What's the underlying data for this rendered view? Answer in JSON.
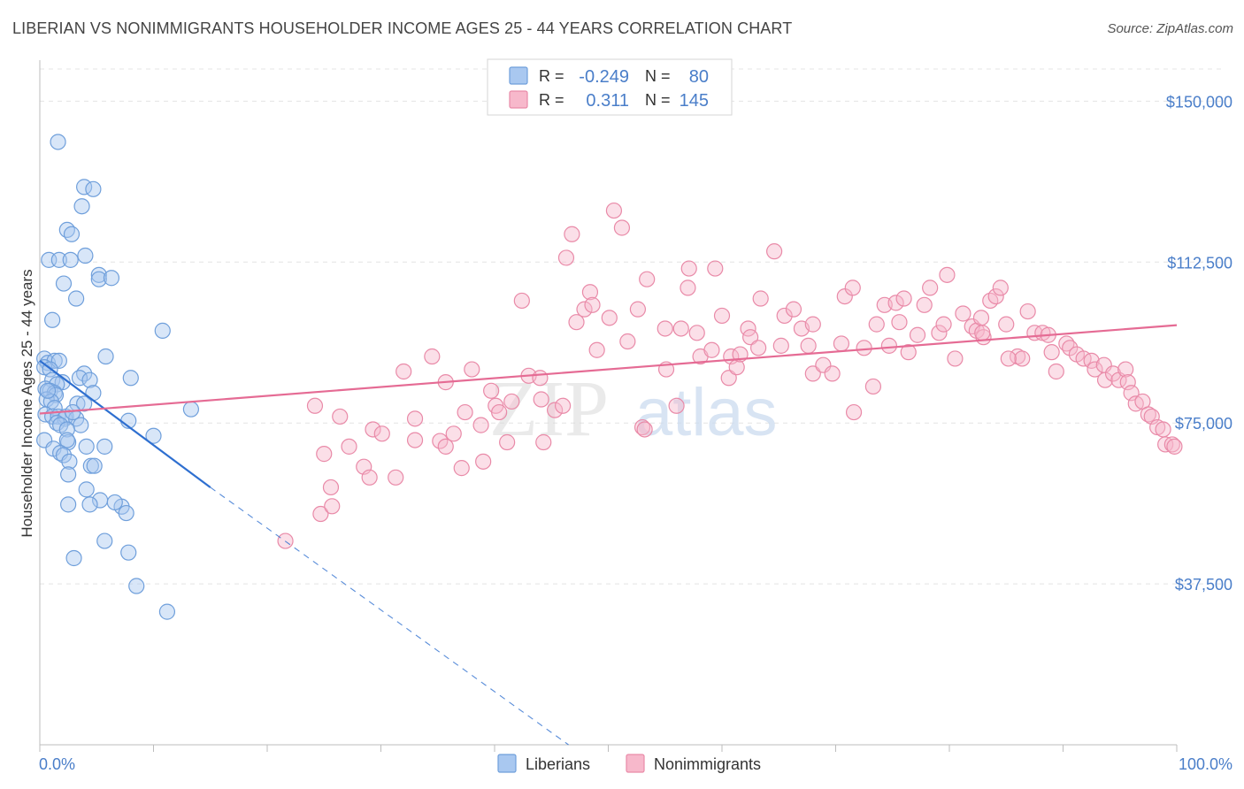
{
  "header": {
    "title": "LIBERIAN VS NONIMMIGRANTS HOUSEHOLDER INCOME AGES 25 - 44 YEARS CORRELATION CHART",
    "source": "Source: ZipAtlas.com"
  },
  "watermark": {
    "zip": "ZIP",
    "atlas": "atlas"
  },
  "legend_box": {
    "rows": [
      {
        "r_label": "R =",
        "r_value": "-0.249",
        "n_label": "N =",
        "n_value": "80",
        "color": "#a9c8f0",
        "stroke": "#6f9fdb"
      },
      {
        "r_label": "R =",
        "r_value": "0.311",
        "n_label": "N =",
        "n_value": "145",
        "color": "#f7b8cb",
        "stroke": "#e98aa8"
      }
    ]
  },
  "bottom_legend": [
    {
      "label": "Liberians",
      "color": "#a9c8f0",
      "stroke": "#6f9fdb"
    },
    {
      "label": "Nonimmigrants",
      "color": "#f7b8cb",
      "stroke": "#e98aa8"
    }
  ],
  "chart_data": {
    "type": "scatter",
    "title": "LIBERIAN VS NONIMMIGRANTS HOUSEHOLDER INCOME AGES 25 - 44 YEARS CORRELATION CHART",
    "xlabel": "",
    "ylabel": "Householder Income Ages 25 - 44 years",
    "xlim": [
      0,
      100
    ],
    "ylim": [
      0,
      157500
    ],
    "x_tick_labels": [
      "0.0%",
      "100.0%"
    ],
    "y_ticks": [
      37500,
      75000,
      112500,
      150000
    ],
    "y_tick_labels": [
      "$37,500",
      "$75,000",
      "$112,500",
      "$150,000"
    ],
    "grid": true,
    "series": [
      {
        "name": "Liberians",
        "color": "#6f9fdb",
        "fill": "#a9c8f0",
        "line_color": "#2e6fd0",
        "trend": {
          "x0": 0,
          "y0": 89500,
          "x1": 15,
          "y1": 60000,
          "dash_to_x": 46.5,
          "dash_to_y": 0
        },
        "points": [
          [
            1.6,
            140500
          ],
          [
            3.9,
            130000
          ],
          [
            4.7,
            129500
          ],
          [
            3.7,
            125500
          ],
          [
            2.4,
            120000
          ],
          [
            2.8,
            119000
          ],
          [
            0.8,
            113000
          ],
          [
            1.7,
            113000
          ],
          [
            2.7,
            113000
          ],
          [
            4.0,
            114000
          ],
          [
            5.2,
            109500
          ],
          [
            5.2,
            108500
          ],
          [
            6.3,
            108800
          ],
          [
            2.1,
            107500
          ],
          [
            3.2,
            104000
          ],
          [
            1.1,
            99000
          ],
          [
            10.8,
            96500
          ],
          [
            0.4,
            90000
          ],
          [
            0.7,
            89000
          ],
          [
            1.3,
            89500
          ],
          [
            1.7,
            89500
          ],
          [
            5.8,
            90500
          ],
          [
            0.4,
            88000
          ],
          [
            0.9,
            87500
          ],
          [
            3.9,
            86500
          ],
          [
            8.0,
            85500
          ],
          [
            1.1,
            85000
          ],
          [
            2.0,
            84500
          ],
          [
            3.5,
            85500
          ],
          [
            4.4,
            85000
          ],
          [
            1.5,
            84000
          ],
          [
            0.5,
            83000
          ],
          [
            0.9,
            82500
          ],
          [
            1.3,
            82000
          ],
          [
            4.7,
            82000
          ],
          [
            1.4,
            81500
          ],
          [
            0.6,
            80500
          ],
          [
            1.0,
            80000
          ],
          [
            3.3,
            79500
          ],
          [
            3.9,
            79500
          ],
          [
            1.3,
            78500
          ],
          [
            13.3,
            78200
          ],
          [
            0.5,
            77000
          ],
          [
            1.1,
            76500
          ],
          [
            1.6,
            76500
          ],
          [
            2.2,
            76000
          ],
          [
            2.3,
            76500
          ],
          [
            3.2,
            76000
          ],
          [
            7.8,
            75500
          ],
          [
            1.5,
            75000
          ],
          [
            1.8,
            74500
          ],
          [
            3.6,
            74500
          ],
          [
            2.4,
            73500
          ],
          [
            10.0,
            72000
          ],
          [
            2.5,
            70500
          ],
          [
            2.4,
            71000
          ],
          [
            0.4,
            71000
          ],
          [
            5.7,
            69500
          ],
          [
            4.1,
            69500
          ],
          [
            1.2,
            69000
          ],
          [
            1.8,
            68000
          ],
          [
            2.1,
            67500
          ],
          [
            4.5,
            65000
          ],
          [
            4.8,
            65000
          ],
          [
            2.6,
            66000
          ],
          [
            2.5,
            63000
          ],
          [
            4.1,
            59500
          ],
          [
            5.3,
            57000
          ],
          [
            2.5,
            56000
          ],
          [
            4.4,
            56000
          ],
          [
            7.2,
            55500
          ],
          [
            7.6,
            54000
          ],
          [
            5.7,
            47500
          ],
          [
            7.8,
            44800
          ],
          [
            3.0,
            43500
          ],
          [
            8.5,
            37000
          ],
          [
            11.2,
            31000
          ],
          [
            0.7,
            82500
          ],
          [
            2.9,
            77500
          ],
          [
            6.6,
            56500
          ]
        ]
      },
      {
        "name": "Nonimmigrants",
        "color": "#e98aa8",
        "fill": "#f7b8cb",
        "line_color": "#e56b94",
        "trend": {
          "x0": 0,
          "y0": 77200,
          "x1": 100,
          "y1": 97800
        },
        "points": [
          [
            21.6,
            47500
          ],
          [
            24.7,
            53800
          ],
          [
            25.7,
            55600
          ],
          [
            25.6,
            60000
          ],
          [
            25.0,
            67800
          ],
          [
            26.4,
            76500
          ],
          [
            24.2,
            79000
          ],
          [
            27.2,
            69500
          ],
          [
            28.5,
            64800
          ],
          [
            29.0,
            62300
          ],
          [
            29.3,
            73500
          ],
          [
            30.1,
            72500
          ],
          [
            31.3,
            62300
          ],
          [
            32.0,
            87000
          ],
          [
            33.0,
            76000
          ],
          [
            33.0,
            71000
          ],
          [
            34.5,
            90500
          ],
          [
            35.2,
            70800
          ],
          [
            35.7,
            69500
          ],
          [
            35.7,
            84500
          ],
          [
            36.4,
            72500
          ],
          [
            37.1,
            64500
          ],
          [
            37.4,
            77500
          ],
          [
            38.0,
            87500
          ],
          [
            38.8,
            74500
          ],
          [
            39.0,
            66000
          ],
          [
            39.7,
            82500
          ],
          [
            40.1,
            79000
          ],
          [
            40.4,
            77500
          ],
          [
            41.1,
            70500
          ],
          [
            41.5,
            80000
          ],
          [
            42.4,
            103500
          ],
          [
            43.0,
            86000
          ],
          [
            44.0,
            85500
          ],
          [
            44.1,
            80500
          ],
          [
            44.3,
            70500
          ],
          [
            45.3,
            78000
          ],
          [
            46.0,
            79000
          ],
          [
            46.3,
            113500
          ],
          [
            46.8,
            119000
          ],
          [
            47.2,
            98500
          ],
          [
            47.9,
            101500
          ],
          [
            48.4,
            105500
          ],
          [
            48.6,
            102500
          ],
          [
            49.0,
            92000
          ],
          [
            50.1,
            99500
          ],
          [
            50.5,
            124500
          ],
          [
            51.2,
            120500
          ],
          [
            51.7,
            94000
          ],
          [
            52.6,
            101500
          ],
          [
            53.0,
            74000
          ],
          [
            53.2,
            73500
          ],
          [
            53.4,
            108500
          ],
          [
            55.0,
            97000
          ],
          [
            55.1,
            87500
          ],
          [
            56.0,
            79000
          ],
          [
            56.4,
            97000
          ],
          [
            57.0,
            106500
          ],
          [
            57.1,
            111000
          ],
          [
            57.8,
            96000
          ],
          [
            58.1,
            90500
          ],
          [
            59.1,
            92000
          ],
          [
            59.4,
            111000
          ],
          [
            60.0,
            100000
          ],
          [
            60.6,
            85500
          ],
          [
            60.8,
            90500
          ],
          [
            61.3,
            88000
          ],
          [
            61.6,
            91000
          ],
          [
            62.3,
            97000
          ],
          [
            62.5,
            95000
          ],
          [
            63.4,
            104000
          ],
          [
            63.2,
            92500
          ],
          [
            64.6,
            115000
          ],
          [
            65.2,
            93000
          ],
          [
            65.5,
            100000
          ],
          [
            66.3,
            101500
          ],
          [
            67.0,
            97000
          ],
          [
            67.6,
            93000
          ],
          [
            68.0,
            98000
          ],
          [
            68.0,
            86500
          ],
          [
            68.9,
            88500
          ],
          [
            69.7,
            86500
          ],
          [
            70.5,
            93500
          ],
          [
            70.8,
            104500
          ],
          [
            71.5,
            106500
          ],
          [
            71.6,
            77500
          ],
          [
            72.5,
            92500
          ],
          [
            73.3,
            83500
          ],
          [
            73.6,
            98000
          ],
          [
            74.3,
            102500
          ],
          [
            74.7,
            93000
          ],
          [
            75.3,
            103000
          ],
          [
            75.6,
            98500
          ],
          [
            76.0,
            104000
          ],
          [
            76.4,
            91500
          ],
          [
            77.2,
            95500
          ],
          [
            77.8,
            102500
          ],
          [
            78.3,
            106500
          ],
          [
            79.1,
            96000
          ],
          [
            79.5,
            98000
          ],
          [
            79.8,
            109500
          ],
          [
            80.5,
            90000
          ],
          [
            81.2,
            100500
          ],
          [
            82.0,
            97500
          ],
          [
            82.4,
            96500
          ],
          [
            82.8,
            99500
          ],
          [
            83.0,
            95000
          ],
          [
            83.6,
            103500
          ],
          [
            84.1,
            104500
          ],
          [
            84.5,
            106500
          ],
          [
            85.0,
            98000
          ],
          [
            86.0,
            90500
          ],
          [
            86.4,
            90000
          ],
          [
            86.9,
            101000
          ],
          [
            87.5,
            96000
          ],
          [
            88.2,
            96000
          ],
          [
            88.7,
            95500
          ],
          [
            89.0,
            91500
          ],
          [
            89.4,
            87000
          ],
          [
            90.3,
            93500
          ],
          [
            90.6,
            92500
          ],
          [
            91.2,
            91000
          ],
          [
            91.8,
            90000
          ],
          [
            92.5,
            89500
          ],
          [
            92.8,
            87500
          ],
          [
            93.6,
            88500
          ],
          [
            93.7,
            85000
          ],
          [
            94.4,
            86500
          ],
          [
            94.9,
            85000
          ],
          [
            95.5,
            87500
          ],
          [
            95.7,
            84500
          ],
          [
            96.0,
            82000
          ],
          [
            96.4,
            79500
          ],
          [
            97.0,
            80000
          ],
          [
            97.5,
            77000
          ],
          [
            97.8,
            76500
          ],
          [
            98.3,
            74000
          ],
          [
            98.8,
            73500
          ],
          [
            99.0,
            70000
          ],
          [
            99.6,
            70000
          ],
          [
            99.8,
            69500
          ],
          [
            82.9,
            96000
          ],
          [
            85.2,
            90000
          ]
        ]
      }
    ]
  }
}
